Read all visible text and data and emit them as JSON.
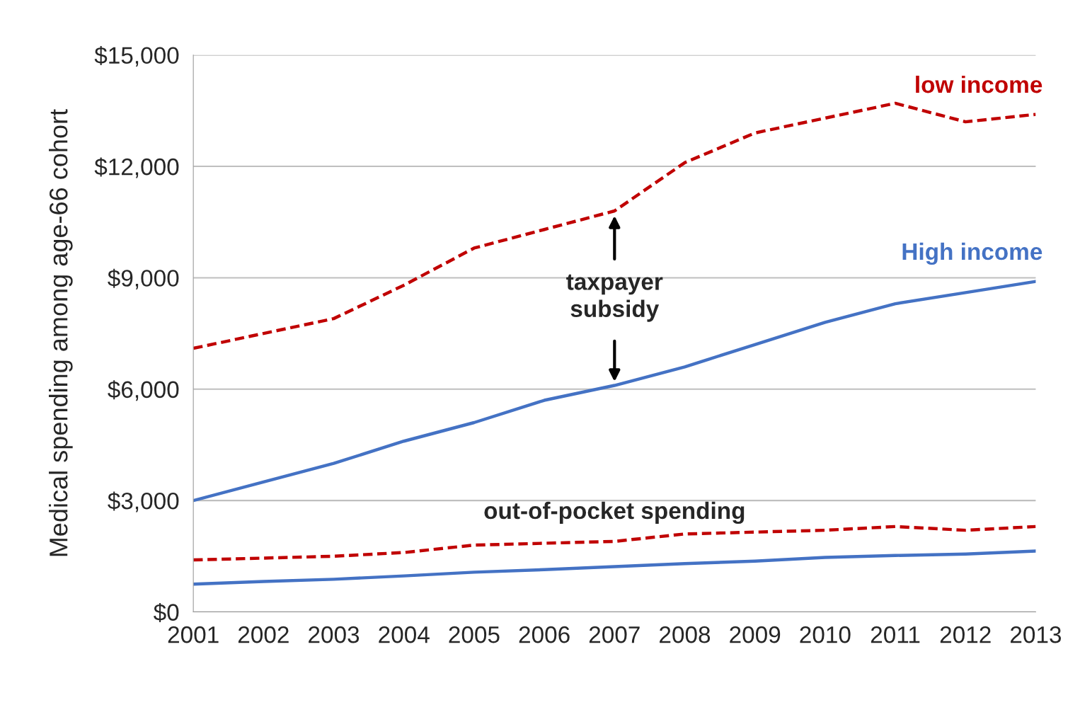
{
  "chart_data": {
    "type": "line",
    "ylabel": "Medical spending among age-66 cohort",
    "x": [
      2001,
      2002,
      2003,
      2004,
      2005,
      2006,
      2007,
      2008,
      2009,
      2010,
      2011,
      2012,
      2013
    ],
    "xlim": [
      2001,
      2013
    ],
    "xticks": [
      2001,
      2002,
      2003,
      2004,
      2005,
      2006,
      2007,
      2008,
      2009,
      2010,
      2011,
      2012,
      2013
    ],
    "ylim": [
      0,
      15000
    ],
    "yticks": [
      {
        "value": 0,
        "label": "$0"
      },
      {
        "value": 3000,
        "label": "$3,000"
      },
      {
        "value": 6000,
        "label": "$6,000"
      },
      {
        "value": 9000,
        "label": "$9,000"
      },
      {
        "value": 12000,
        "label": "$12,000"
      },
      {
        "value": 15000,
        "label": "$15,000"
      }
    ],
    "grid": "y",
    "legend": false,
    "marker": "none",
    "series": [
      {
        "name": "low income",
        "color": "#c00000",
        "line_style": "dashed",
        "values": [
          7100,
          7500,
          7900,
          8800,
          9800,
          10300,
          10800,
          12100,
          12900,
          13300,
          13700,
          13200,
          13400
        ]
      },
      {
        "name": "High income",
        "color": "#4472c4",
        "line_style": "solid",
        "values": [
          3000,
          3500,
          4000,
          4600,
          5100,
          5700,
          6100,
          6600,
          7200,
          7800,
          8300,
          8600,
          8900
        ]
      },
      {
        "color": "#c00000",
        "line_style": "dashed",
        "values": [
          1400,
          1450,
          1500,
          1600,
          1800,
          1850,
          1900,
          2100,
          2150,
          2200,
          2300,
          2200,
          2300
        ]
      },
      {
        "color": "#4472c4",
        "line_style": "solid",
        "values": [
          750,
          820,
          880,
          970,
          1070,
          1140,
          1220,
          1300,
          1370,
          1470,
          1520,
          1560,
          1640
        ]
      }
    ],
    "annotations": [
      "taxpayer\nsubsidy",
      "out-of-pocket spending"
    ]
  }
}
